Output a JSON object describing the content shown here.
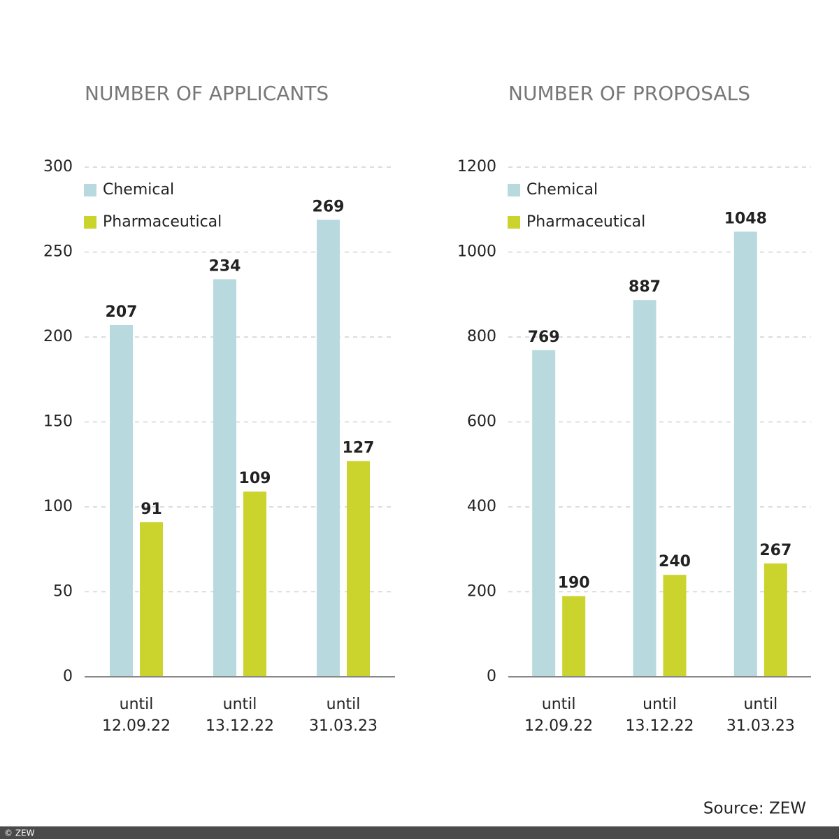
{
  "chart_data": [
    {
      "type": "bar",
      "title": "NUMBER OF APPLICANTS",
      "categories": [
        "until 12.09.22",
        "until 13.12.22",
        "until 31.03.23"
      ],
      "series": [
        {
          "name": "Chemical",
          "color": "#b8dadf",
          "values": [
            207,
            234,
            269
          ]
        },
        {
          "name": "Pharmaceutical",
          "color": "#cbd32d",
          "values": [
            91,
            109,
            127
          ]
        }
      ],
      "ylim": [
        0,
        300
      ],
      "yticks": [
        0,
        50,
        100,
        150,
        200,
        250,
        300
      ],
      "grid": true,
      "legend": "upper left"
    },
    {
      "type": "bar",
      "title": "NUMBER OF PROPOSALS",
      "categories": [
        "until 12.09.22",
        "until 13.12.22",
        "until 31.03.23"
      ],
      "series": [
        {
          "name": "Chemical",
          "color": "#b8dadf",
          "values": [
            769,
            887,
            1048
          ]
        },
        {
          "name": "Pharmaceutical",
          "color": "#cbd32d",
          "values": [
            190,
            240,
            267
          ]
        }
      ],
      "ylim": [
        0,
        1200
      ],
      "yticks": [
        0,
        200,
        400,
        600,
        800,
        1000,
        1200
      ],
      "grid": true,
      "legend": "upper left"
    }
  ],
  "source": "Source: ZEW",
  "copyright": "© ZEW"
}
